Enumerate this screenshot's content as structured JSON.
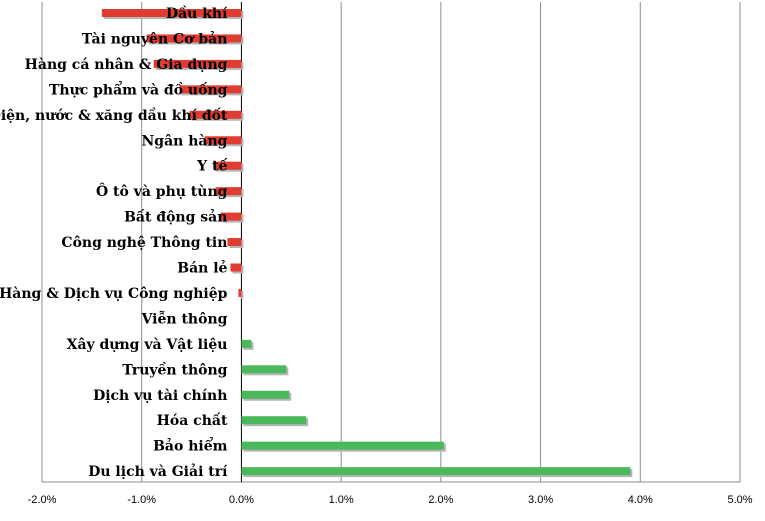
{
  "chart_data": {
    "type": "bar",
    "orientation": "horizontal",
    "title": "",
    "xlabel": "",
    "ylabel": "",
    "xlim": [
      -0.02,
      0.05
    ],
    "x_ticks": [
      -0.02,
      -0.01,
      0.0,
      0.01,
      0.02,
      0.03,
      0.04,
      0.05
    ],
    "x_tick_labels": [
      "-2.0%",
      "-1.0%",
      "0.0%",
      "1.0%",
      "2.0%",
      "3.0%",
      "4.0%",
      "5.0%"
    ],
    "grid": "vertical",
    "colors": {
      "negative": "#e03c31",
      "positive": "#4cb85c"
    },
    "categories": [
      "Dầu khí",
      "Tài nguyên Cơ bản",
      "Hàng cá nhân & Gia dụng",
      "Thực phẩm và đồ uống",
      "Điện, nước & xăng dầu khí đốt",
      "Ngân hàng",
      "Y tế",
      "Ô tô và phụ tùng",
      "Bất động sản",
      "Công nghệ Thông tin",
      "Bán lẻ",
      "Hàng & Dịch vụ Công nghiệp",
      "Viễn thông",
      "Xây dựng và Vật liệu",
      "Truyền thông",
      "Dịch vụ tài chính",
      "Hóa chất",
      "Bảo hiểm",
      "Du lịch và Giải trí"
    ],
    "values": [
      -0.014,
      -0.0095,
      -0.0088,
      -0.0062,
      -0.0052,
      -0.0037,
      -0.0027,
      -0.0026,
      -0.0021,
      -0.0014,
      -0.0011,
      -0.0003,
      0.0,
      0.001,
      0.0045,
      0.0048,
      0.0065,
      0.0203,
      0.039
    ]
  }
}
